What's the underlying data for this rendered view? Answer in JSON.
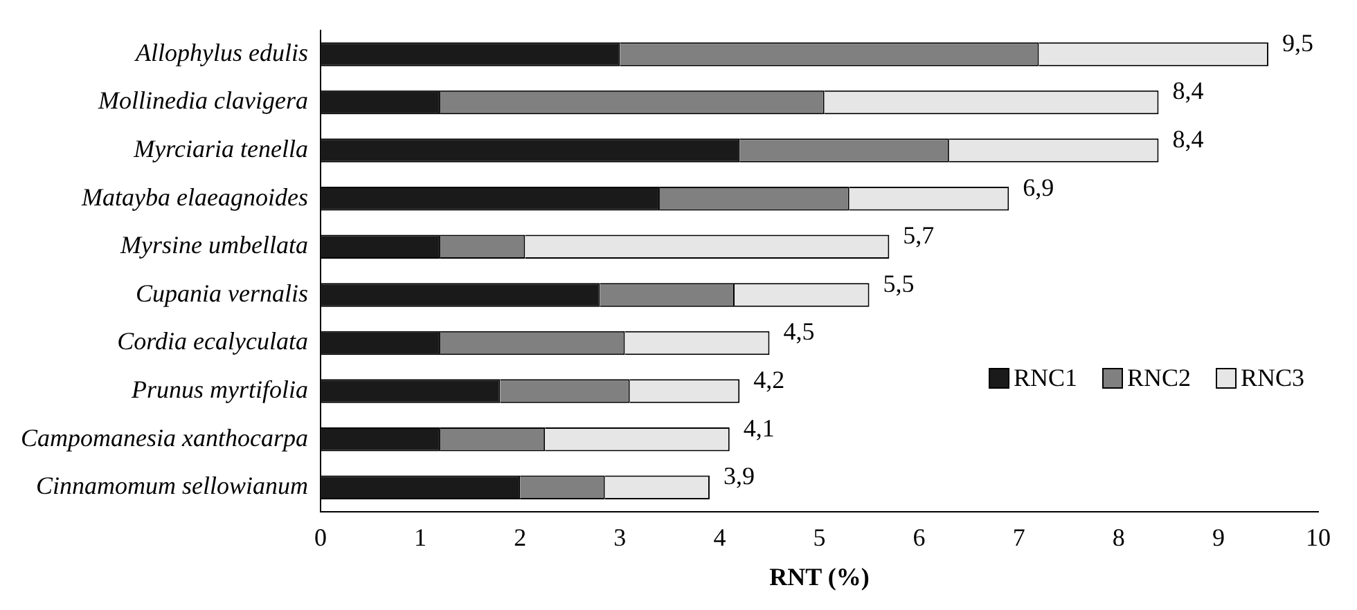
{
  "chart_data": {
    "type": "bar",
    "orientation": "horizontal",
    "stacked": true,
    "xlabel": "RNT (%)",
    "categories": [
      "Allophylus edulis",
      "Mollinedia clavigera",
      "Myrciaria tenella",
      "Matayba elaeagnoides",
      "Myrsine umbellata",
      "Cupania vernalis",
      "Cordia ecalyculata",
      "Prunus myrtifolia",
      "Campomanesia xanthocarpa",
      "Cinnamomum sellowianum"
    ],
    "series": [
      {
        "name": "RNC1",
        "color": "#1a1a1a",
        "values": [
          3.0,
          1.2,
          4.2,
          3.4,
          1.2,
          2.8,
          1.2,
          1.8,
          1.2,
          2.0
        ]
      },
      {
        "name": "RNC2",
        "color": "#808080",
        "values": [
          4.2,
          3.85,
          2.1,
          1.9,
          0.85,
          1.35,
          1.85,
          1.3,
          1.05,
          0.85
        ]
      },
      {
        "name": "RNC3",
        "color": "#e6e6e6",
        "values": [
          2.3,
          3.35,
          2.1,
          1.6,
          3.65,
          1.35,
          1.45,
          1.1,
          1.85,
          1.05
        ]
      }
    ],
    "totals": [
      "9,5",
      "8,4",
      "8,4",
      "6,9",
      "5,7",
      "5,5",
      "4,5",
      "4,2",
      "4,1",
      "3,9"
    ],
    "xlim": [
      0,
      10
    ],
    "xticks": [
      0,
      1,
      2,
      3,
      4,
      5,
      6,
      7,
      8,
      9,
      10
    ],
    "grid": false,
    "legend": "right"
  }
}
